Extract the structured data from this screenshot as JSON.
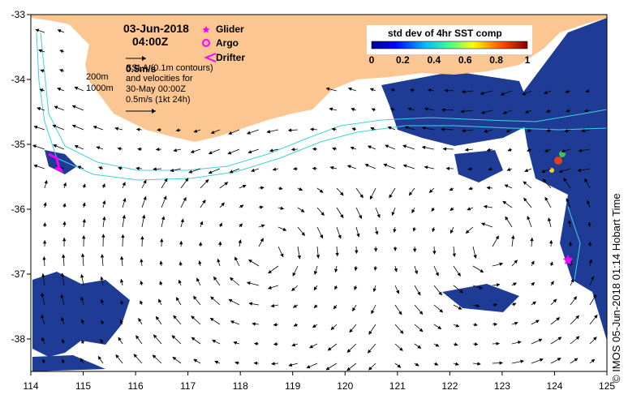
{
  "header": {
    "date": "03-Jun-2018",
    "time": "04:00Z"
  },
  "legend": {
    "items": [
      {
        "label": "Glider",
        "symbol": "star",
        "color": "#ff00ff"
      },
      {
        "label": "Argo",
        "symbol": "circle",
        "color": "#ff00ff"
      },
      {
        "label": "Drifter",
        "symbol": "chevron",
        "color": "#ff00ff"
      }
    ]
  },
  "velocity_note": {
    "scale_top": "0.5m/s",
    "line1": "SSLA (0.1m contours)",
    "line2": "and velocities for",
    "line3": "30-May 00:00Z",
    "line4": "0.5m/s (1kt 24h)"
  },
  "depth_contours": [
    "200m",
    "1000m"
  ],
  "colorbar": {
    "title": "std dev of 4hr SST comp",
    "ticks": [
      "0",
      "0.2",
      "0.4",
      "0.6",
      "0.8",
      "1"
    ],
    "range": [
      0,
      1
    ]
  },
  "axes": {
    "x_ticks": [
      "114",
      "115",
      "116",
      "117",
      "118",
      "119",
      "120",
      "121",
      "122",
      "123",
      "124",
      "125"
    ],
    "y_ticks": [
      "-33",
      "-34",
      "-35",
      "-36",
      "-37",
      "-38"
    ],
    "lon_range": [
      114,
      125
    ],
    "lat_range": [
      -38.5,
      -33
    ]
  },
  "credit": "© IMOS 05-Jun-2018 01:14 Hobart Time",
  "colors": {
    "land": "#fbc692",
    "sst_deep": "#1e3c96",
    "contour": "#3fd2dc",
    "marker": "#ff00ff"
  }
}
